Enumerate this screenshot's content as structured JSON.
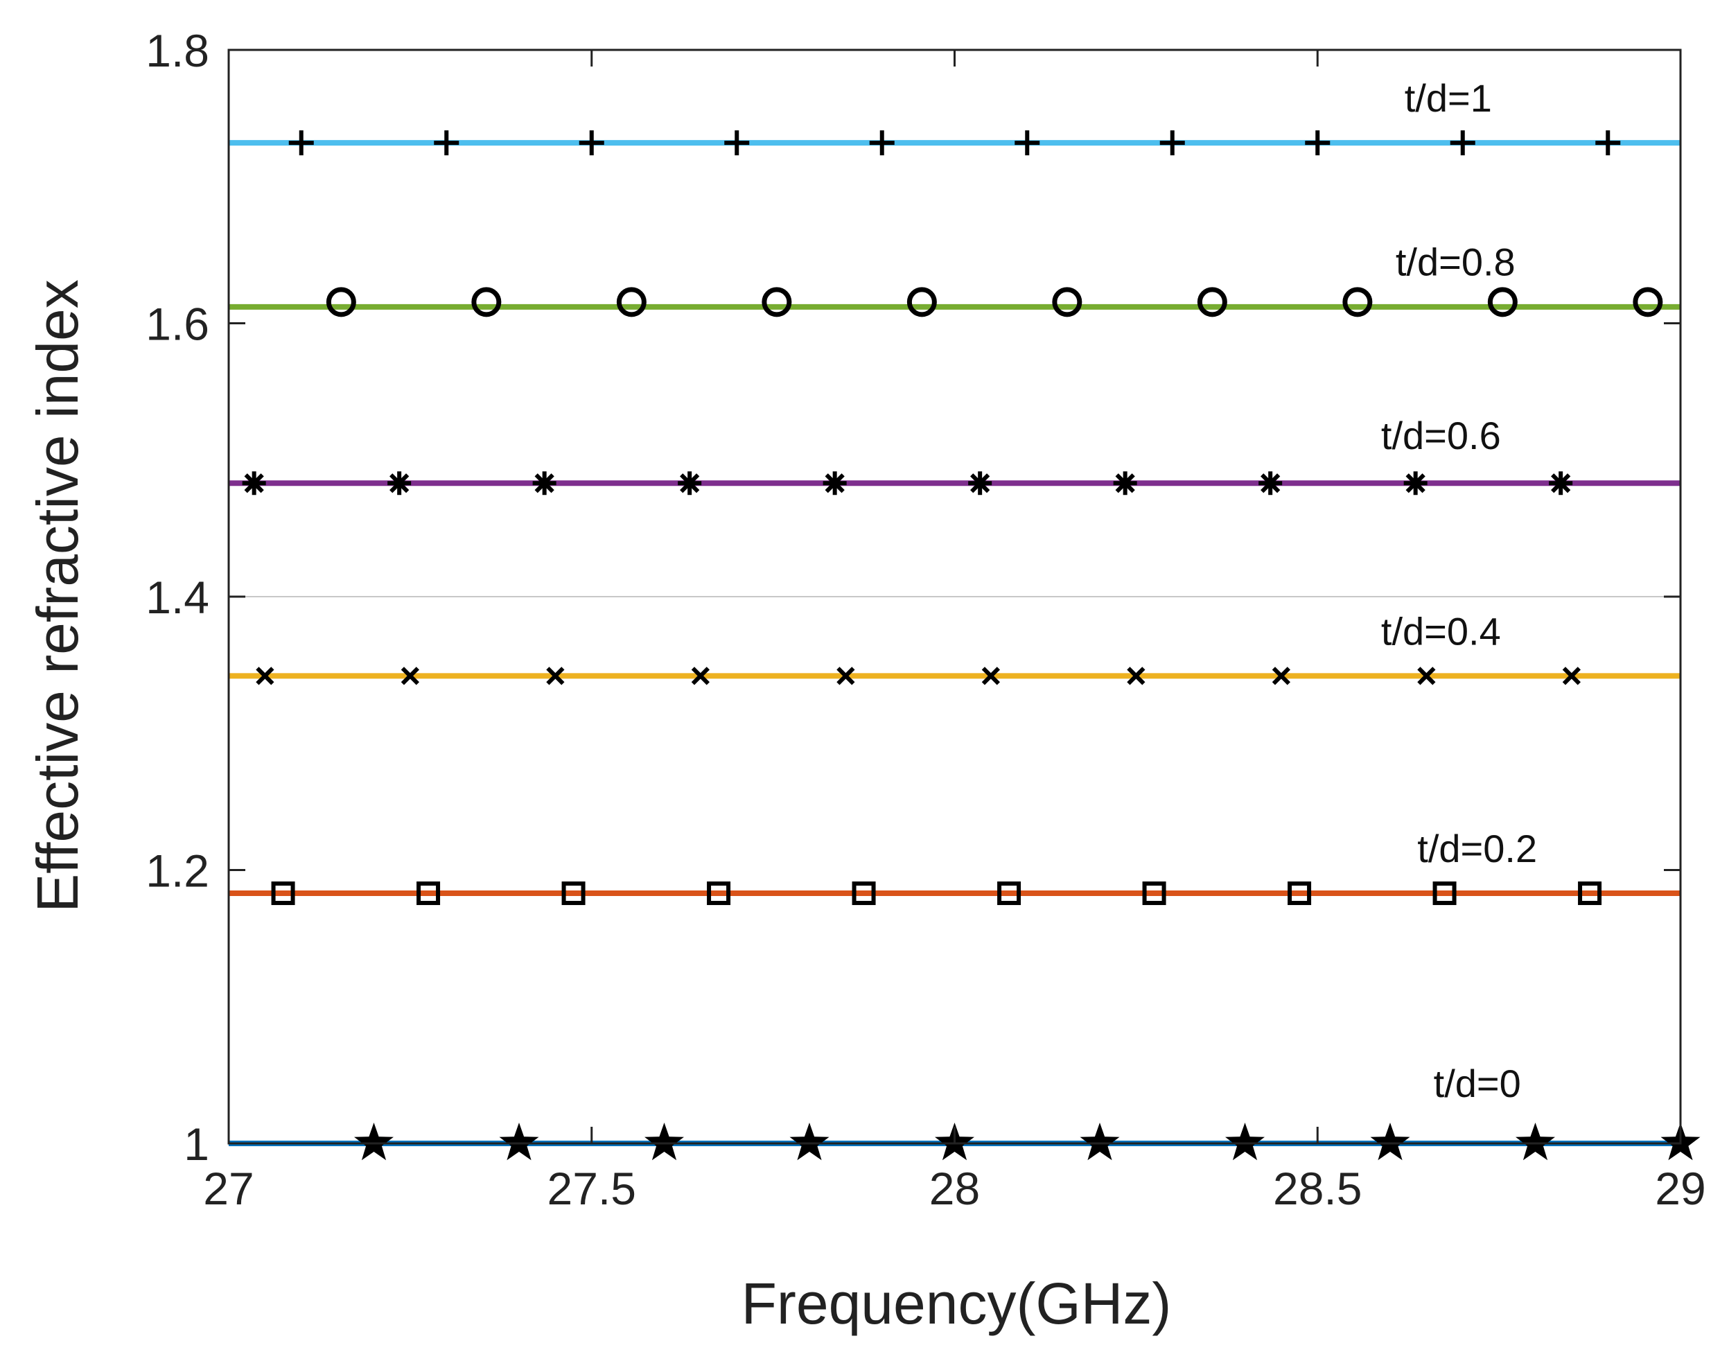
{
  "chart_data": {
    "type": "line",
    "xlabel": "Frequency(GHz)",
    "ylabel": "Effective refractive index",
    "xlim": [
      27,
      29
    ],
    "ylim": [
      1,
      1.8
    ],
    "xticks": [
      27,
      27.5,
      28,
      28.5,
      29
    ],
    "xtick_labels": [
      "27",
      "27.5",
      "28",
      "28.5",
      "29"
    ],
    "yticks": [
      1,
      1.2,
      1.4,
      1.6,
      1.8
    ],
    "ytick_labels": [
      "1",
      "1.2",
      "1.4",
      "1.6",
      "1.8"
    ],
    "grid": false,
    "line_x": [
      27,
      29
    ],
    "series": [
      {
        "annotation": "t/d=1",
        "value": 1.732,
        "color": "#4DBEEE",
        "marker": "plus",
        "marker_x": [
          27.1,
          27.3,
          27.5,
          27.7,
          27.9,
          28.1,
          28.3,
          28.5,
          28.7,
          28.9
        ],
        "annotation_x": 28.68,
        "annotation_y": 1.765
      },
      {
        "annotation": "t/d=0.8",
        "value": 1.612,
        "color": "#77AC30",
        "marker": "circle",
        "marker_x": [
          27.155,
          27.355,
          27.555,
          27.755,
          27.955,
          28.155,
          28.355,
          28.555,
          28.755,
          28.955
        ],
        "annotation_x": 28.69,
        "annotation_y": 1.645
      },
      {
        "annotation": "t/d=0.6",
        "value": 1.483,
        "color": "#7E2F8E",
        "marker": "asterisk",
        "marker_x": [
          27.035,
          27.235,
          27.435,
          27.635,
          27.835,
          28.035,
          28.235,
          28.435,
          28.635,
          28.835
        ],
        "annotation_x": 28.67,
        "annotation_y": 1.518
      },
      {
        "annotation": "t/d=0.4",
        "value": 1.342,
        "color": "#EDB120",
        "marker": "cross",
        "marker_x": [
          27.05,
          27.25,
          27.45,
          27.65,
          27.85,
          28.05,
          28.25,
          28.45,
          28.65,
          28.85
        ],
        "annotation_x": 28.67,
        "annotation_y": 1.375
      },
      {
        "annotation": "t/d=0.2",
        "value": 1.183,
        "color": "#D95319",
        "marker": "square",
        "marker_x": [
          27.075,
          27.275,
          27.475,
          27.675,
          27.875,
          28.075,
          28.275,
          28.475,
          28.675,
          28.875
        ],
        "annotation_x": 28.72,
        "annotation_y": 1.216
      },
      {
        "annotation": "t/d=0",
        "value": 1.0,
        "color": "#0072BD",
        "marker": "star",
        "marker_x": [
          27.2,
          27.4,
          27.6,
          27.8,
          28.0,
          28.2,
          28.4,
          28.6,
          28.8,
          29.0
        ],
        "annotation_x": 28.72,
        "annotation_y": 1.044
      }
    ]
  }
}
